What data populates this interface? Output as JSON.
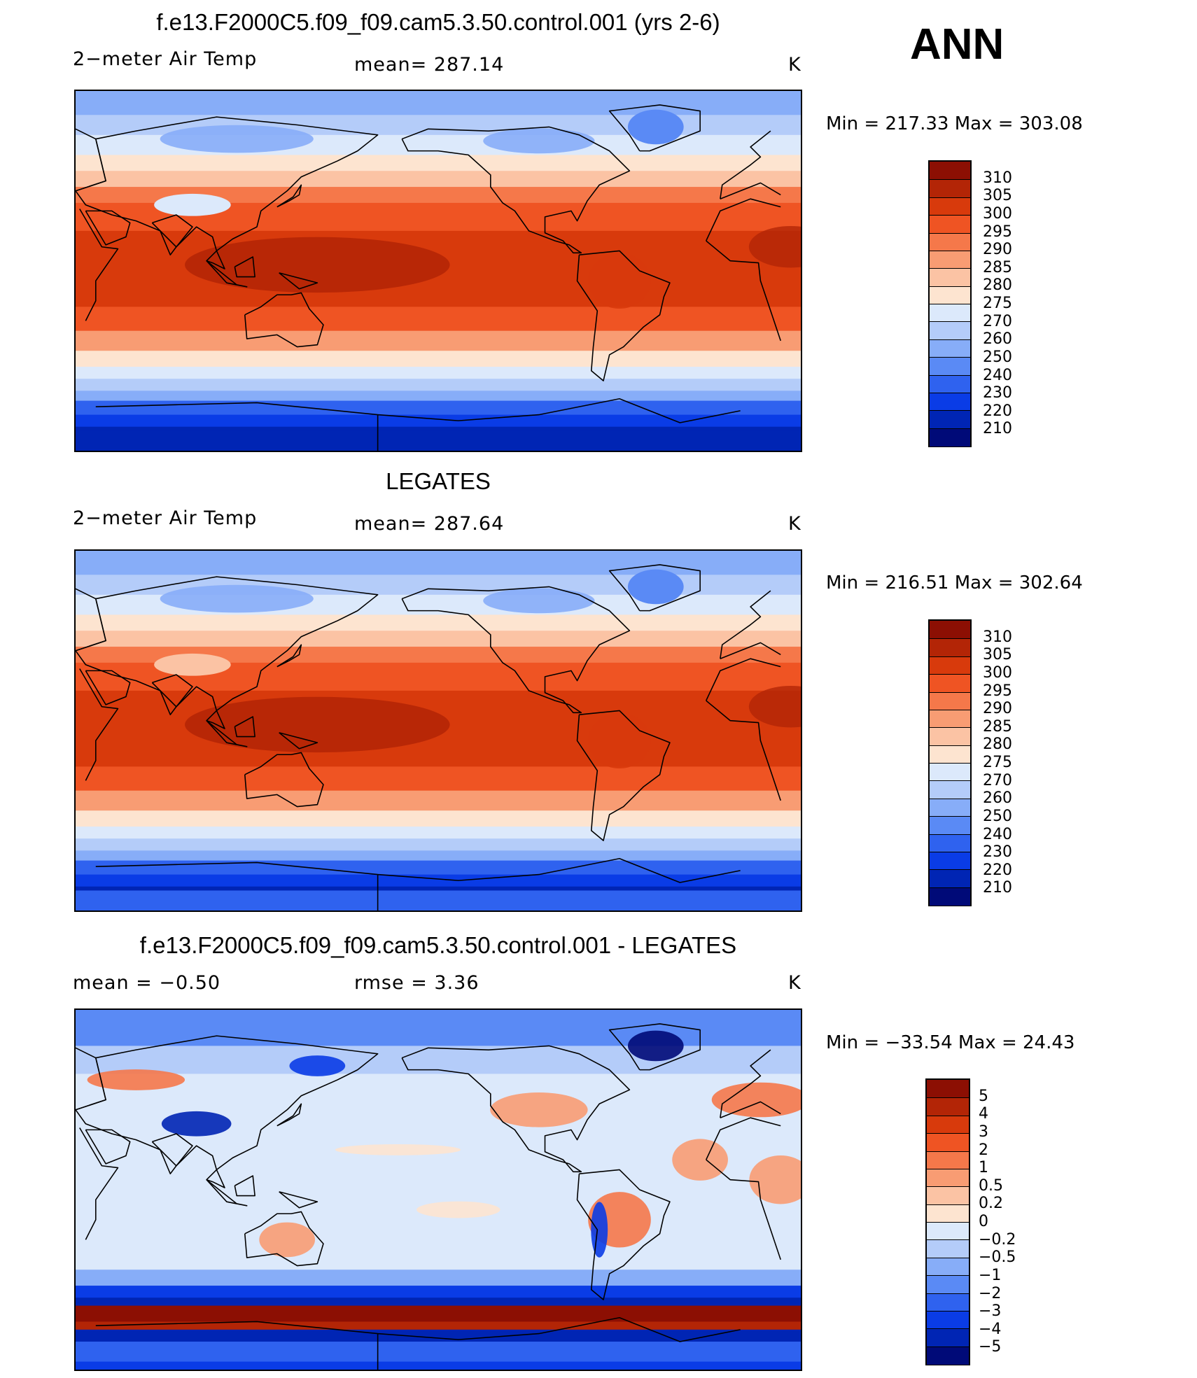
{
  "season": "ANN",
  "colors": {
    "abs_scale": [
      "#000a78",
      "#0025b4",
      "#0a3ce6",
      "#2f62ef",
      "#5a8af5",
      "#87adf8",
      "#b4ccf9",
      "#dce9fb",
      "#fde4d0",
      "#fbc3a4",
      "#f89c73",
      "#f5784a",
      "#ef5423",
      "#d83a0c",
      "#b32506",
      "#8c0f03"
    ],
    "diff_scale": [
      "#000a78",
      "#0025b4",
      "#0a3ce6",
      "#2f62ef",
      "#5a8af5",
      "#87adf8",
      "#b4ccf9",
      "#dce9fb",
      "#fde4d0",
      "#fbc3a4",
      "#f89c73",
      "#f5784a",
      "#ef5423",
      "#d83a0c",
      "#b32506",
      "#8c0f03"
    ],
    "coastline": "#000000"
  },
  "panels": [
    {
      "id": "model",
      "title": "f.e13.F2000C5.f09_f09.cam5.3.50.control.001 (yrs 2-6)",
      "left_label": "2−meter Air Temp",
      "center_label": "mean=  287.14",
      "units": "K",
      "min_max": "Min  =  217.33  Max  =  303.08",
      "colorbar_labels": [
        "310",
        "305",
        "300",
        "295",
        "290",
        "285",
        "280",
        "275",
        "270",
        "260",
        "250",
        "240",
        "230",
        "220",
        "210"
      ],
      "field": "abs"
    },
    {
      "id": "obs",
      "title": "LEGATES",
      "left_label": "2−meter Air Temp",
      "center_label": "mean=  287.64",
      "units": "K",
      "min_max": "Min  =  216.51  Max  =  302.64",
      "colorbar_labels": [
        "310",
        "305",
        "300",
        "295",
        "290",
        "285",
        "280",
        "275",
        "270",
        "260",
        "250",
        "240",
        "230",
        "220",
        "210"
      ],
      "field": "abs"
    },
    {
      "id": "diff",
      "title": "f.e13.F2000C5.f09_f09.cam5.3.50.control.001 - LEGATES",
      "left_label": "mean  =     −0.50",
      "center_label": "rmse  =      3.36",
      "units": "K",
      "min_max": "Min  =  −33.54  Max  =    24.43",
      "colorbar_labels": [
        "5",
        "4",
        "3",
        "2",
        "1",
        "0.5",
        "0.2",
        "0",
        "−0.2",
        "−0.5",
        "−1",
        "−2",
        "−3",
        "−4",
        "−5"
      ],
      "field": "diff"
    }
  ]
}
